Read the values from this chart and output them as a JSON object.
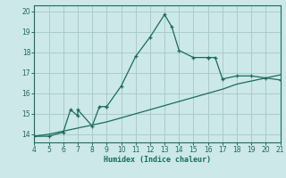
{
  "xlabel": "Humidex (Indice chaleur)",
  "xlim": [
    4,
    21
  ],
  "ylim": [
    13.6,
    20.3
  ],
  "yticks": [
    14,
    15,
    16,
    17,
    18,
    19,
    20
  ],
  "xticks": [
    4,
    5,
    6,
    7,
    8,
    9,
    10,
    11,
    12,
    13,
    14,
    15,
    16,
    17,
    18,
    19,
    20,
    21
  ],
  "bg_color": "#cce8e8",
  "line_color": "#1a6b5a",
  "grid_color": "#aacccc",
  "curve1_x": [
    4,
    5,
    6,
    6.5,
    7,
    7,
    8,
    8.5,
    9,
    9,
    10,
    11,
    12,
    13,
    13.5,
    14,
    15,
    16,
    16,
    16.5,
    17,
    18,
    19,
    20,
    21
  ],
  "curve1_y": [
    13.9,
    13.9,
    14.1,
    15.2,
    14.9,
    15.2,
    14.4,
    15.35,
    15.35,
    15.35,
    16.35,
    17.8,
    18.75,
    19.85,
    19.25,
    18.1,
    17.75,
    17.75,
    17.75,
    17.75,
    16.7,
    16.85,
    16.85,
    16.75,
    16.65
  ],
  "curve2_x": [
    4,
    5,
    6,
    7,
    8,
    9,
    10,
    11,
    12,
    13,
    14,
    15,
    16,
    17,
    18,
    19,
    20,
    21
  ],
  "curve2_y": [
    13.9,
    14.0,
    14.15,
    14.3,
    14.45,
    14.6,
    14.8,
    15.0,
    15.2,
    15.4,
    15.6,
    15.8,
    16.0,
    16.2,
    16.45,
    16.6,
    16.75,
    16.9
  ]
}
